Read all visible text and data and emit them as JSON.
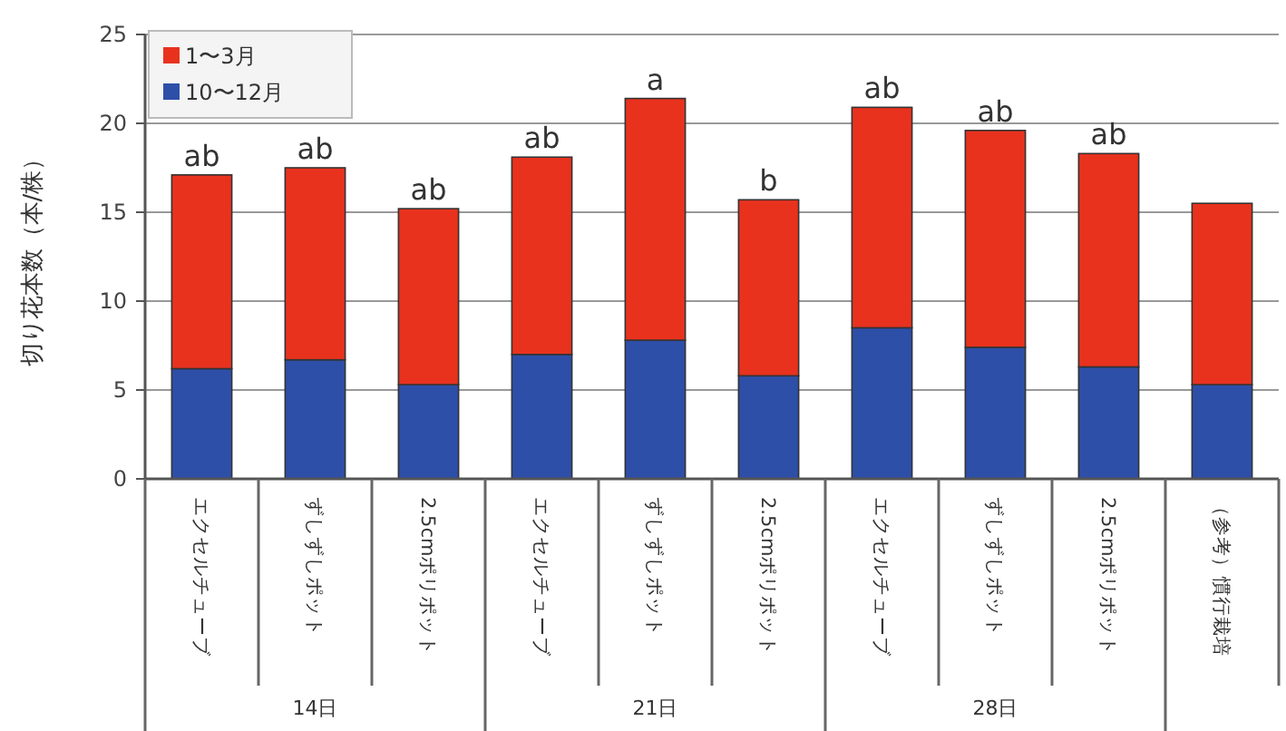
{
  "chart_data": {
    "type": "bar",
    "stacked": true,
    "ylabel": "切り花本数（本/株）",
    "categories": [
      "エクセルチューブ",
      "ずしずしポット",
      "2.5cmポリポット",
      "エクセルチューブ",
      "ずしずしポット",
      "2.5cmポリポット",
      "エクセルチューブ",
      "ずしずしポット",
      "2.5cmポリポット",
      "（参考）慣行栽培"
    ],
    "series": [
      {
        "name": "10〜12月",
        "color": "#2e4fa8",
        "values": [
          6.2,
          6.7,
          5.3,
          7.0,
          7.8,
          5.8,
          8.5,
          7.4,
          6.3,
          5.3
        ]
      },
      {
        "name": "1〜3月",
        "color": "#e8321e",
        "values": [
          10.9,
          10.8,
          9.9,
          11.1,
          13.6,
          9.9,
          12.4,
          12.2,
          12.0,
          10.2
        ],
        "value_labels": [
          "ab",
          "ab",
          "ab",
          "ab",
          "a",
          "b",
          "ab",
          "ab",
          "ab",
          null
        ]
      }
    ],
    "annotations": [
      "14日",
      "21日",
      "28日"
    ],
    "ylim": [
      0,
      25
    ],
    "yticks": [
      0,
      5,
      10,
      15,
      20,
      25
    ],
    "grid": "y",
    "legend": "top left"
  }
}
